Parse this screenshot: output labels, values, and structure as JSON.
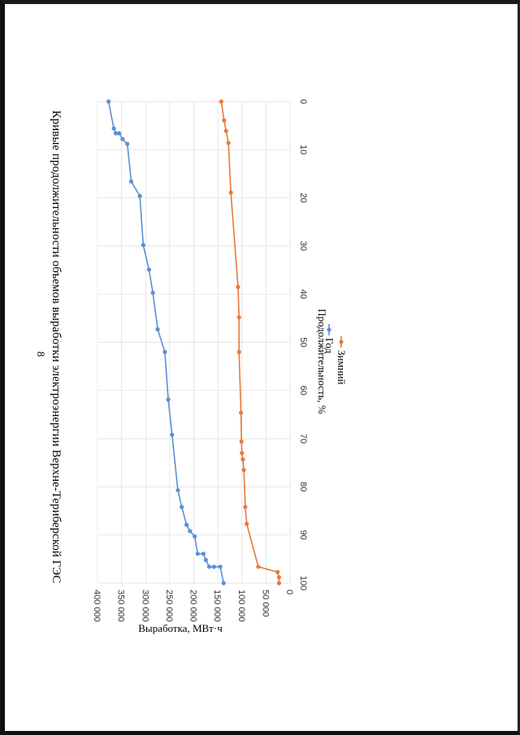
{
  "page_number": "8",
  "chart_data": {
    "type": "line",
    "title": "Кривые продолжительности объемов выработки электроэнергии Верхне-Териберской ГЭС",
    "xlabel": "Продолжительность, %",
    "ylabel": "Выработка, МВт·ч",
    "xlim": [
      0,
      100
    ],
    "ylim": [
      0,
      400000
    ],
    "x_ticks": [
      0,
      10,
      20,
      30,
      40,
      50,
      60,
      70,
      80,
      90,
      100
    ],
    "y_ticks": [
      0,
      50000,
      100000,
      150000,
      200000,
      250000,
      300000,
      350000,
      400000
    ],
    "y_tick_labels": [
      "0",
      "50 000",
      "100 000",
      "150 000",
      "200 000",
      "250 000",
      "300 000",
      "350 000",
      "400 000"
    ],
    "grid": true,
    "legend_position": "bottom",
    "series": [
      {
        "name": "Год",
        "color": "#5b8fd4",
        "x": [
          0,
          5.6,
          6.6,
          6.6,
          7.8,
          8.8,
          16.6,
          19.6,
          29.8,
          34.9,
          39.7,
          47.3,
          52.0,
          61.9,
          69.2,
          80.7,
          84.2,
          87.9,
          89.2,
          90.3,
          93.9,
          93.9,
          95.2,
          96.6,
          96.6,
          96.6,
          100
        ],
        "y": [
          377000,
          366000,
          362000,
          355000,
          348000,
          338000,
          330000,
          312000,
          305000,
          293000,
          285000,
          275000,
          260000,
          253000,
          245000,
          233000,
          225000,
          215000,
          208000,
          198000,
          192000,
          180000,
          175000,
          168000,
          158000,
          145000,
          138000
        ]
      },
      {
        "name": "Зимний",
        "color": "#e8793a",
        "x": [
          0,
          3.9,
          6.1,
          8.6,
          18.9,
          38.5,
          44.8,
          52.0,
          64.6,
          70.6,
          73.0,
          74.3,
          76.5,
          84.2,
          87.7,
          96.6,
          97.7,
          98.8,
          100
        ],
        "y": [
          143000,
          137000,
          133000,
          128000,
          123000,
          108000,
          106000,
          106000,
          102000,
          101000,
          100000,
          98000,
          96000,
          93000,
          90000,
          66000,
          26000,
          23000,
          23000
        ]
      }
    ]
  }
}
